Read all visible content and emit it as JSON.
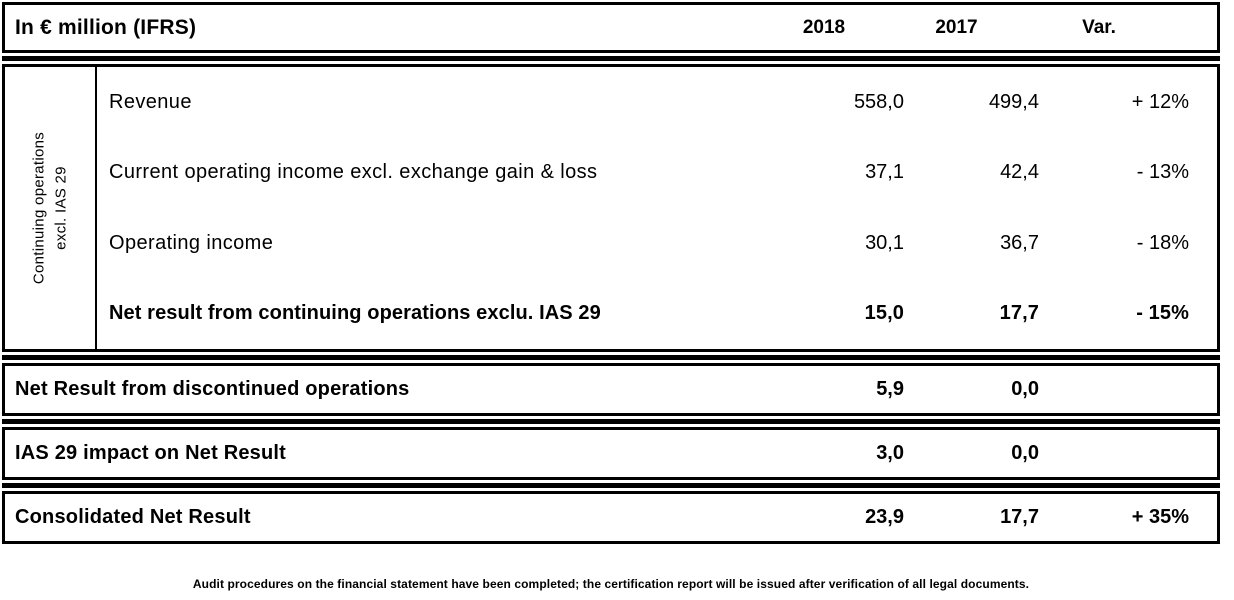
{
  "header": {
    "title": "In € million (IFRS)",
    "col_2018": "2018",
    "col_2017": "2017",
    "col_var": "Var."
  },
  "continuing_section": {
    "group_label_line1": "Continuing operations",
    "group_label_line2": "excl. IAS 29",
    "rows": [
      {
        "label": "Revenue",
        "y2018": "558,0",
        "y2017": "499,4",
        "variation": "+ 12%"
      },
      {
        "label": "Current operating income excl. exchange gain & loss",
        "y2018": "37,1",
        "y2017": "42,4",
        "variation": "- 13%"
      },
      {
        "label": "Operating income",
        "y2018": "30,1",
        "y2017": "36,7",
        "variation": "- 18%"
      },
      {
        "label": "Net result from continuing operations exclu. IAS 29",
        "y2018": "15,0",
        "y2017": "17,7",
        "variation": "- 15%"
      }
    ]
  },
  "summary_rows": [
    {
      "label": "Net Result from discontinued operations",
      "y2018": "5,9",
      "y2017": "0,0",
      "variation": ""
    },
    {
      "label": "IAS 29 impact on Net Result",
      "y2018": "3,0",
      "y2017": "0,0",
      "variation": ""
    },
    {
      "label": "Consolidated Net Result",
      "y2018": "23,9",
      "y2017": "17,7",
      "variation": "+ 35%"
    }
  ],
  "footnote": "Audit procedures on the financial statement have been completed; the certification report will be issued after verification of all legal documents.",
  "colors": {
    "border": "#000000",
    "background": "#ffffff",
    "text": "#000000"
  }
}
